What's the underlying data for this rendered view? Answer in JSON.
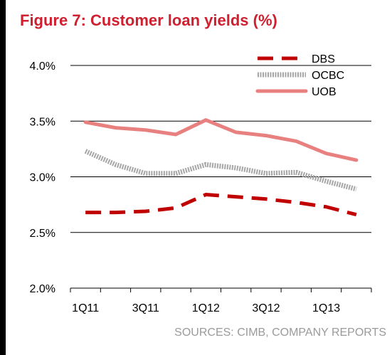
{
  "chart_data": {
    "type": "line",
    "title": "Figure 7: Customer loan yields (%)",
    "source": "SOURCES: CIMB, COMPANY REPORTS",
    "categories": [
      "1Q11",
      "2Q11",
      "3Q11",
      "4Q11",
      "1Q12",
      "2Q12",
      "3Q12",
      "4Q12",
      "1Q13",
      "2Q13"
    ],
    "x_tick_labels": [
      "1Q11",
      "",
      "3Q11",
      "",
      "1Q12",
      "",
      "3Q12",
      "",
      "1Q13",
      ""
    ],
    "y_tick_labels": [
      "2.0%",
      "2.5%",
      "3.0%",
      "3.5%",
      "4.0%"
    ],
    "y_ticks": [
      2.0,
      2.5,
      3.0,
      3.5,
      4.0
    ],
    "ylim": [
      2.0,
      4.0
    ],
    "xlabel": "",
    "ylabel": "",
    "grid": true,
    "legend_position": "top-right",
    "series": [
      {
        "name": "DBS",
        "values": [
          2.68,
          2.68,
          2.69,
          2.72,
          2.84,
          2.82,
          2.8,
          2.77,
          2.73,
          2.66
        ],
        "color": "#c00000",
        "style": "dashed"
      },
      {
        "name": "OCBC",
        "values": [
          3.23,
          3.11,
          3.03,
          3.03,
          3.11,
          3.08,
          3.03,
          3.04,
          2.96,
          2.89
        ],
        "color": "#a6a6a6",
        "style": "dotted-thick"
      },
      {
        "name": "UOB",
        "values": [
          3.49,
          3.44,
          3.42,
          3.38,
          3.51,
          3.4,
          3.37,
          3.32,
          3.21,
          3.15
        ],
        "color": "#e88080",
        "style": "solid"
      }
    ]
  }
}
